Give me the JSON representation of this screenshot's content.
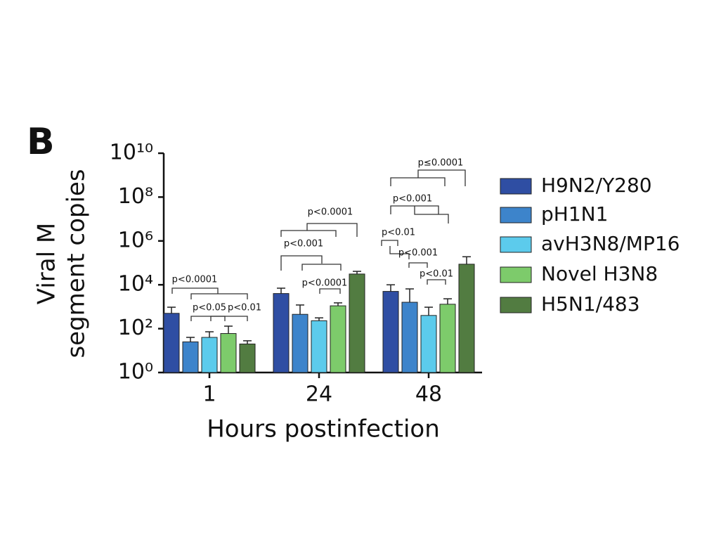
{
  "chart_data": {
    "type": "bar",
    "panel_label": "B",
    "ylabel": [
      "Viral M",
      "segment copies"
    ],
    "xlabel": "Hours postinfection",
    "categories": [
      "1",
      "24",
      "48"
    ],
    "log_y": true,
    "ylim": [
      1,
      10000000000
    ],
    "yticks": [
      {
        "value": 1,
        "label": "10⁰"
      },
      {
        "value": 100,
        "label": "10²"
      },
      {
        "value": 10000,
        "label": "10⁴"
      },
      {
        "value": 1000000,
        "label": "10⁶"
      },
      {
        "value": 100000000,
        "label": "10⁸"
      },
      {
        "value": 10000000000,
        "label": "10¹⁰"
      }
    ],
    "legend": "right",
    "series": [
      {
        "name": "H9N2/Y280",
        "color": "#2f4ea3",
        "values": [
          500,
          4000,
          5000
        ],
        "errors": [
          450,
          3000,
          5000
        ]
      },
      {
        "name": "pH1N1",
        "color": "#3d84cb",
        "values": [
          25,
          450,
          1600
        ],
        "errors": [
          15,
          750,
          4900
        ]
      },
      {
        "name": "avH3N8/MP16",
        "color": "#5ccbec",
        "values": [
          40,
          230,
          400
        ],
        "errors": [
          32,
          80,
          550
        ]
      },
      {
        "name": "Novel H3N8",
        "color": "#7dcb6b",
        "values": [
          60,
          1100,
          1300
        ],
        "errors": [
          70,
          400,
          1000
        ]
      },
      {
        "name": "H5N1/483",
        "color": "#527c41",
        "values": [
          20,
          31000,
          87000
        ],
        "errors": [
          8,
          10000,
          103000
        ]
      }
    ],
    "annotations": [
      "p<0.0001",
      "p<0.05",
      "p<0.01",
      "p<0.0001",
      "p<0.001",
      "p<0.0001",
      "p≤0.0001",
      "p<0.001",
      "p<0.01",
      "p<0.001",
      "p<0.01"
    ]
  }
}
